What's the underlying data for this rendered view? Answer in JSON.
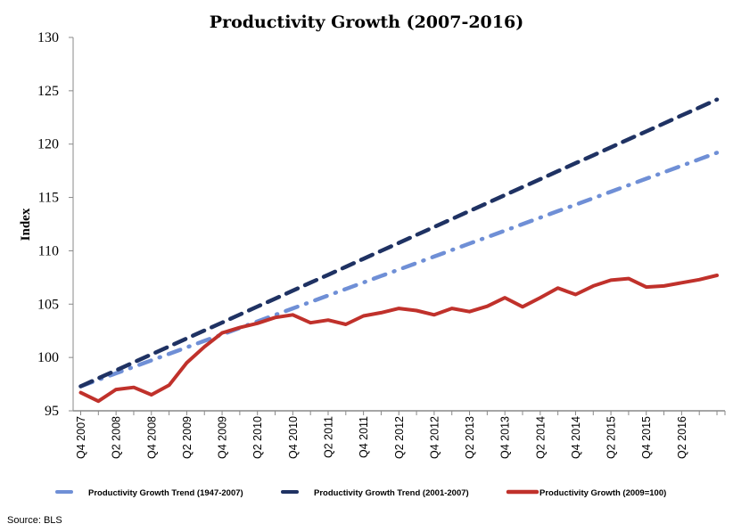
{
  "chart_data": {
    "type": "line",
    "title": "Productivity Growth (2007-2016)",
    "xlabel": "",
    "ylabel": "Index",
    "ylim": [
      95,
      130
    ],
    "yticks": [
      95,
      100,
      105,
      110,
      115,
      120,
      125,
      130
    ],
    "grid": false,
    "legend_position": "bottom",
    "source": "Source: BLS",
    "x": [
      "Q4 2007",
      "Q1 2008",
      "Q2 2008",
      "Q3 2008",
      "Q4 2008",
      "Q1 2009",
      "Q2 2009",
      "Q3 2009",
      "Q4 2009",
      "Q1 2010",
      "Q2 2010",
      "Q3 2010",
      "Q4 2010",
      "Q1 2011",
      "Q2 2011",
      "Q3 2011",
      "Q4 2011",
      "Q1 2012",
      "Q2 2012",
      "Q3 2012",
      "Q4 2012",
      "Q1 2013",
      "Q2 2013",
      "Q3 2013",
      "Q4 2013",
      "Q1 2014",
      "Q2 2014",
      "Q3 2014",
      "Q4 2014",
      "Q1 2015",
      "Q2 2015",
      "Q3 2015",
      "Q4 2015",
      "Q1 2016",
      "Q2 2016",
      "Q3 2016",
      "Q4 2016"
    ],
    "xtick_labels": [
      "Q4 2007",
      "Q2 2008",
      "Q4 2008",
      "Q2 2009",
      "Q4 2009",
      "Q2 2010",
      "Q4 2010",
      "Q2 2011",
      "Q4 2011",
      "Q2 2012",
      "Q4 2012",
      "Q2 2013",
      "Q4 2013",
      "Q2 2014",
      "Q4 2014",
      "Q2 2015",
      "Q4 2015",
      "Q2 2016"
    ],
    "series": [
      {
        "name": "Productivity Growth Trend (1947-2007)",
        "color": "#6f8fd6",
        "style": "dash-dot",
        "values": [
          97.3,
          97.91,
          98.52,
          99.12,
          99.73,
          100.34,
          100.95,
          101.56,
          102.16,
          102.77,
          103.38,
          103.99,
          104.6,
          105.2,
          105.81,
          106.42,
          107.03,
          107.64,
          108.24,
          108.85,
          109.46,
          110.07,
          110.68,
          111.28,
          111.89,
          112.5,
          113.11,
          113.72,
          114.32,
          114.93,
          115.54,
          116.15,
          116.76,
          117.36,
          117.97,
          118.58,
          119.19
        ]
      },
      {
        "name": "Productivity Growth Trend (2001-2007)",
        "color": "#1f3263",
        "style": "dash",
        "values": [
          97.3,
          98.05,
          98.79,
          99.54,
          100.29,
          101.03,
          101.78,
          102.53,
          103.27,
          104.02,
          104.77,
          105.51,
          106.26,
          107.01,
          107.75,
          108.5,
          109.25,
          109.99,
          110.74,
          111.49,
          112.23,
          112.98,
          113.73,
          114.47,
          115.22,
          115.97,
          116.71,
          117.46,
          118.21,
          118.95,
          119.7,
          120.45,
          121.19,
          121.94,
          122.69,
          123.43,
          124.18
        ]
      },
      {
        "name": "Productivity Growth (2009=100)",
        "color": "#c0312b",
        "style": "solid",
        "values": [
          96.7,
          95.9,
          97.0,
          97.2,
          96.5,
          97.4,
          99.5,
          101.0,
          102.3,
          102.8,
          103.2,
          103.75,
          104.0,
          103.25,
          103.5,
          103.1,
          103.9,
          104.2,
          104.6,
          104.4,
          104.0,
          104.6,
          104.3,
          104.8,
          105.6,
          104.75,
          105.6,
          106.5,
          105.9,
          106.7,
          107.25,
          107.4,
          106.6,
          106.7,
          107.0,
          107.3,
          107.7
        ]
      }
    ]
  }
}
